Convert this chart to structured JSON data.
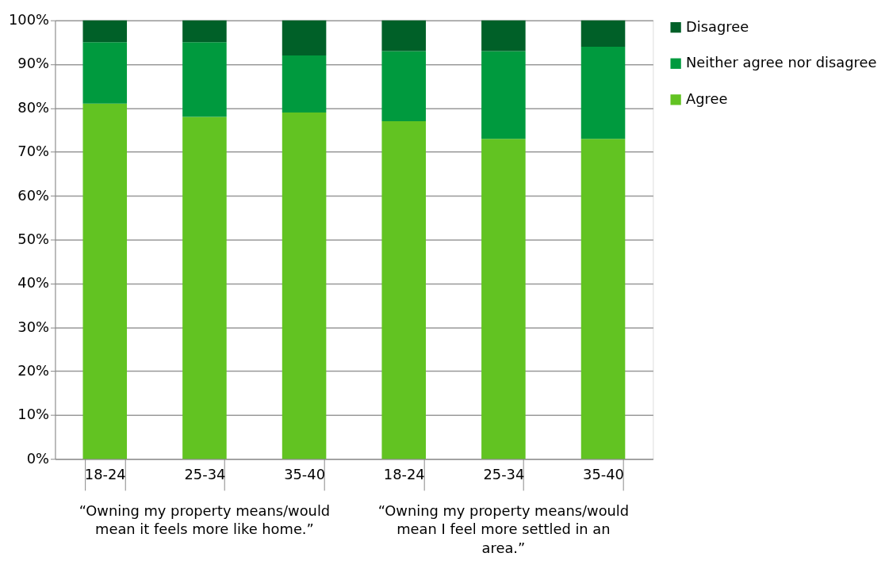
{
  "chart_data": {
    "type": "bar",
    "stacked": true,
    "categories": [
      "18-24",
      "25-34",
      "35-40",
      "18-24",
      "25-34",
      "35-40"
    ],
    "series": [
      {
        "name": "Agree",
        "color": "#62c322",
        "values": [
          81,
          78,
          79,
          77,
          73,
          73
        ]
      },
      {
        "name": "Neither agree nor disagree",
        "color": "#009a3e",
        "values": [
          14,
          17,
          13,
          16,
          20,
          21
        ]
      },
      {
        "name": "Disagree",
        "color": "#006028",
        "values": [
          5,
          5,
          8,
          7,
          7,
          6
        ]
      }
    ],
    "ylim": [
      0,
      100
    ],
    "yticks": [
      {
        "value": 0,
        "label": "0%"
      },
      {
        "value": 10,
        "label": "10%"
      },
      {
        "value": 20,
        "label": "20%"
      },
      {
        "value": 30,
        "label": "30%"
      },
      {
        "value": 40,
        "label": "40%"
      },
      {
        "value": 50,
        "label": "50%"
      },
      {
        "value": 60,
        "label": "60%"
      },
      {
        "value": 70,
        "label": "70%"
      },
      {
        "value": 80,
        "label": "80%"
      },
      {
        "value": 90,
        "label": "90%"
      },
      {
        "value": 100,
        "label": "100%"
      }
    ],
    "grid": "y",
    "legend": "right",
    "annotations": [
      "“Owning my property means/would mean it feels more like home.”",
      "“Owning my property means/would mean I feel more settled in an area.”"
    ]
  }
}
